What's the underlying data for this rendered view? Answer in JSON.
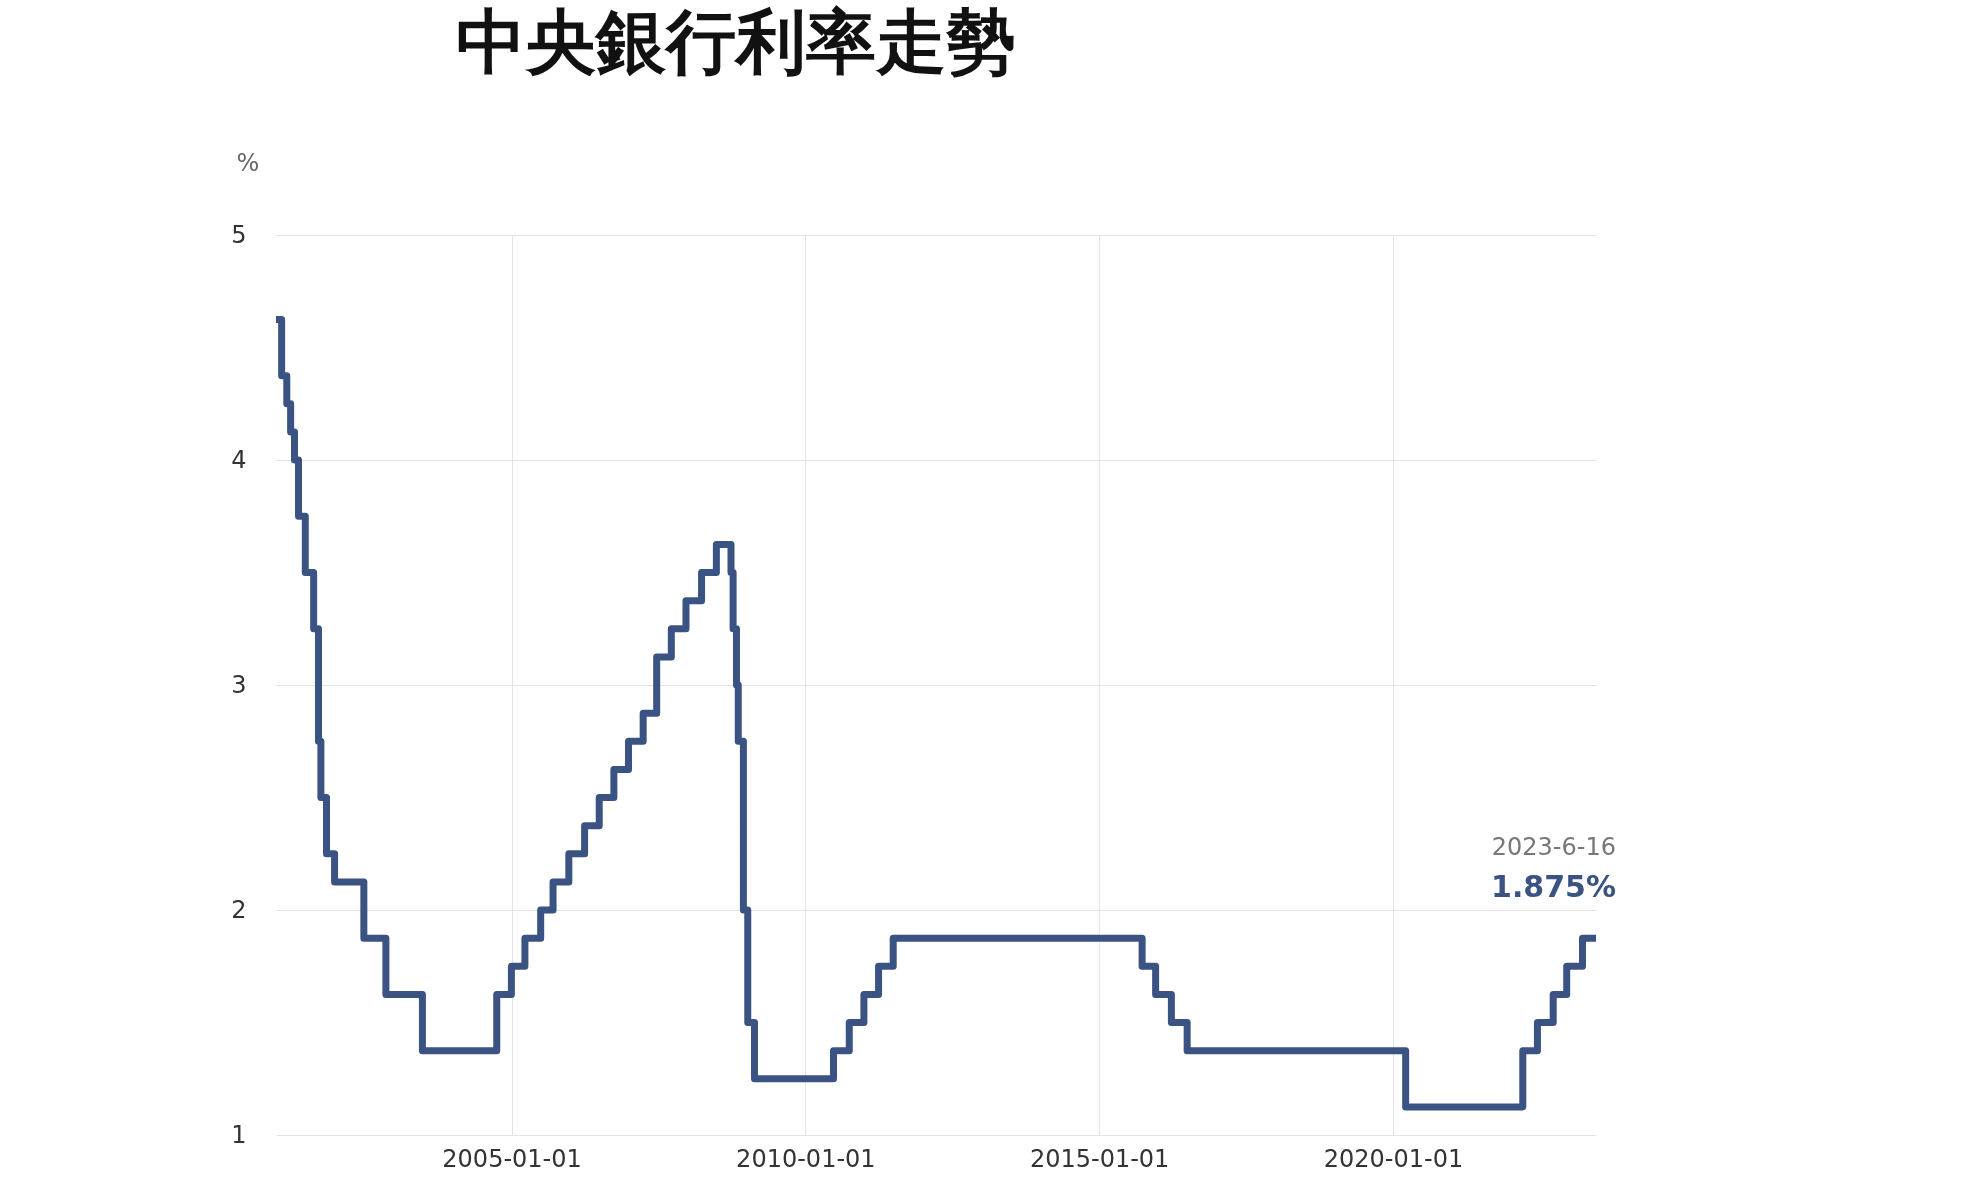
{
  "chart_data": {
    "type": "step",
    "title": "中央銀行利率走勢",
    "ylabel": "%",
    "x": [
      "2000-12-29",
      "2001-02-02",
      "2001-03-06",
      "2001-03-30",
      "2001-04-23",
      "2001-05-18",
      "2001-06-29",
      "2001-08-20",
      "2001-09-19",
      "2001-10-04",
      "2001-11-08",
      "2001-12-28",
      "2002-06-28",
      "2002-11-12",
      "2003-06-27",
      "2004-10-01",
      "2004-12-31",
      "2005-03-25",
      "2005-07-01",
      "2005-09-16",
      "2005-12-23",
      "2006-03-31",
      "2006-06-30",
      "2006-09-29",
      "2006-12-29",
      "2007-03-30",
      "2007-06-22",
      "2007-09-21",
      "2007-12-21",
      "2008-03-27",
      "2008-06-27",
      "2008-09-26",
      "2008-10-09",
      "2008-10-30",
      "2008-11-10",
      "2008-12-12",
      "2009-01-08",
      "2009-02-19",
      "2010-06-25",
      "2010-10-01",
      "2010-12-31",
      "2011-04-01",
      "2011-07-01",
      "2015-09-25",
      "2015-12-18",
      "2016-03-25",
      "2016-07-01",
      "2020-03-20",
      "2022-03-18",
      "2022-06-17",
      "2022-09-23",
      "2022-12-16",
      "2023-03-24",
      "2023-06-16"
    ],
    "series": [
      {
        "color": "#3b5383",
        "values": [
          4.625,
          4.375,
          4.25,
          4.125,
          4.0,
          3.75,
          3.5,
          3.25,
          2.75,
          2.5,
          2.25,
          2.125,
          1.875,
          1.625,
          1.375,
          1.625,
          1.75,
          1.875,
          2.0,
          2.125,
          2.25,
          2.375,
          2.5,
          2.625,
          2.75,
          2.875,
          3.125,
          3.25,
          3.375,
          3.5,
          3.625,
          3.5,
          3.25,
          3.0,
          2.75,
          2.0,
          1.5,
          1.25,
          1.375,
          1.5,
          1.625,
          1.75,
          1.875,
          1.75,
          1.625,
          1.5,
          1.375,
          1.125,
          1.375,
          1.5,
          1.625,
          1.75,
          1.875,
          1.875
        ]
      }
    ],
    "xlim": [
      "2000-12-29",
      "2023-06-16"
    ],
    "xticks": [
      "2005-01-01",
      "2010-01-01",
      "2015-01-01",
      "2020-01-01"
    ],
    "ylim": [
      1,
      5
    ],
    "yticks": [
      1,
      2,
      3,
      4,
      5
    ],
    "grid": true,
    "line_style": "solid",
    "marker": "none",
    "annotations": [
      "2023-6-16",
      {
        "text": "1.875%",
        "x": "2023-06-16",
        "y": 1.875
      }
    ]
  }
}
